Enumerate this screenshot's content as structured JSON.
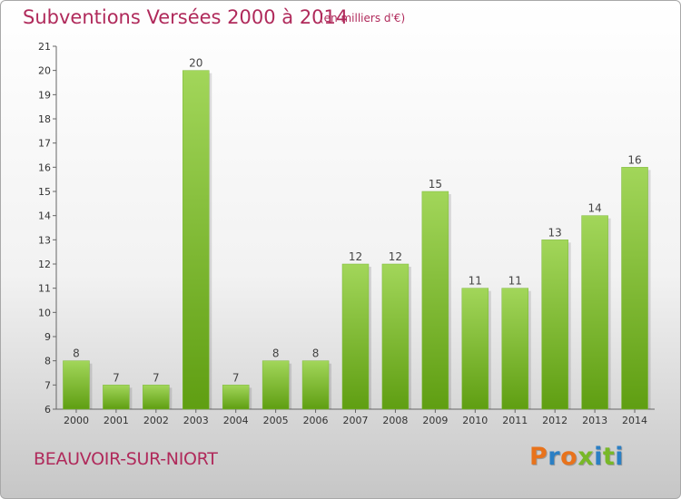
{
  "header": {
    "title": "Subventions Versées 2000 à 2014",
    "subtitle": "(en milliers d'€)"
  },
  "footer": {
    "commune": "BEAUVOIR-SUR-NIORT",
    "logo_text": "Proxiti"
  },
  "colors": {
    "title": "#b02a5b",
    "bar_top": "#a2d65a",
    "bar_bottom": "#5f9e12",
    "logo_letters": [
      "#e8731c",
      "#2b7fc4",
      "#e8731c",
      "#78b828",
      "#2b7fc4",
      "#78b828",
      "#2b7fc4"
    ]
  },
  "chart_data": {
    "type": "bar",
    "title": "Subventions Versées 2000 à 2014",
    "subtitle": "(en milliers d'€)",
    "xlabel": "",
    "ylabel": "",
    "categories": [
      "2000",
      "2001",
      "2002",
      "2003",
      "2004",
      "2005",
      "2006",
      "2007",
      "2008",
      "2009",
      "2010",
      "2011",
      "2012",
      "2013",
      "2014"
    ],
    "values": [
      8,
      7,
      7,
      20,
      7,
      8,
      8,
      12,
      12,
      15,
      11,
      11,
      13,
      14,
      16
    ],
    "ylim": [
      6,
      21
    ],
    "yticks": [
      6,
      7,
      8,
      9,
      10,
      11,
      12,
      13,
      14,
      15,
      16,
      17,
      18,
      19,
      20,
      21
    ],
    "grid": false,
    "legend": "none",
    "data_labels": true
  }
}
